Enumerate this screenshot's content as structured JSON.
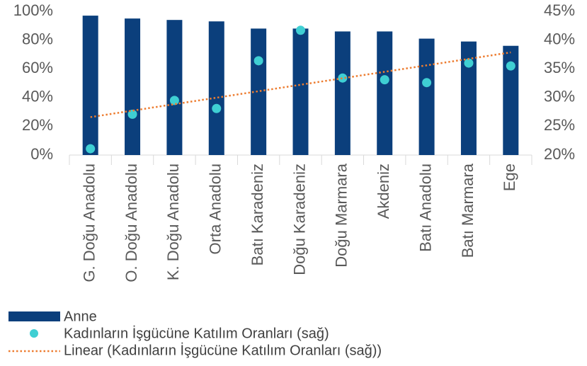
{
  "chart_data": {
    "type": "bar",
    "categories": [
      "G. Doğu Anadolu",
      "O. Doğu Anadolu",
      "K. Doğu Anadolu",
      "Orta Anadolu",
      "Batı Karadeniz",
      "Doğu Karadeniz",
      "Doğu Marmara",
      "Akdeniz",
      "Batı Anadolu",
      "Batı Marmara",
      "Ege"
    ],
    "series": [
      {
        "name": "Anne",
        "type": "bar",
        "color": "#0b3f7c",
        "values": [
          97,
          95,
          94,
          93,
          88,
          88,
          86,
          86,
          81,
          79,
          76
        ]
      },
      {
        "name": "Kadınların İşgücüne Katılım Oranları (sağ)",
        "type": "scatter",
        "axis": "y2",
        "color": "#3fcfd3",
        "values": [
          21.1,
          27.1,
          29.5,
          28.1,
          36.4,
          41.7,
          33.4,
          33.1,
          32.6,
          36.0,
          35.5
        ]
      }
    ],
    "trendline": {
      "name": "Linear (Kadınların İşgücüne Katılım Oranları (sağ))",
      "type": "linear",
      "color": "#ed7d31"
    },
    "ylim": [
      0,
      100
    ],
    "yticks": [
      {
        "value": 0,
        "label": "0%"
      },
      {
        "value": 20,
        "label": "20%"
      },
      {
        "value": 40,
        "label": "40%"
      },
      {
        "value": 60,
        "label": "60%"
      },
      {
        "value": 80,
        "label": "80%"
      },
      {
        "value": 100,
        "label": "100%"
      }
    ],
    "y2lim": [
      20,
      45
    ],
    "y2ticks": [
      {
        "value": 20,
        "label": "20%"
      },
      {
        "value": 25,
        "label": "25%"
      },
      {
        "value": 30,
        "label": "30%"
      },
      {
        "value": 35,
        "label": "35%"
      },
      {
        "value": 40,
        "label": "40%"
      },
      {
        "value": 45,
        "label": "45%"
      }
    ],
    "legend": "bottom-left"
  }
}
